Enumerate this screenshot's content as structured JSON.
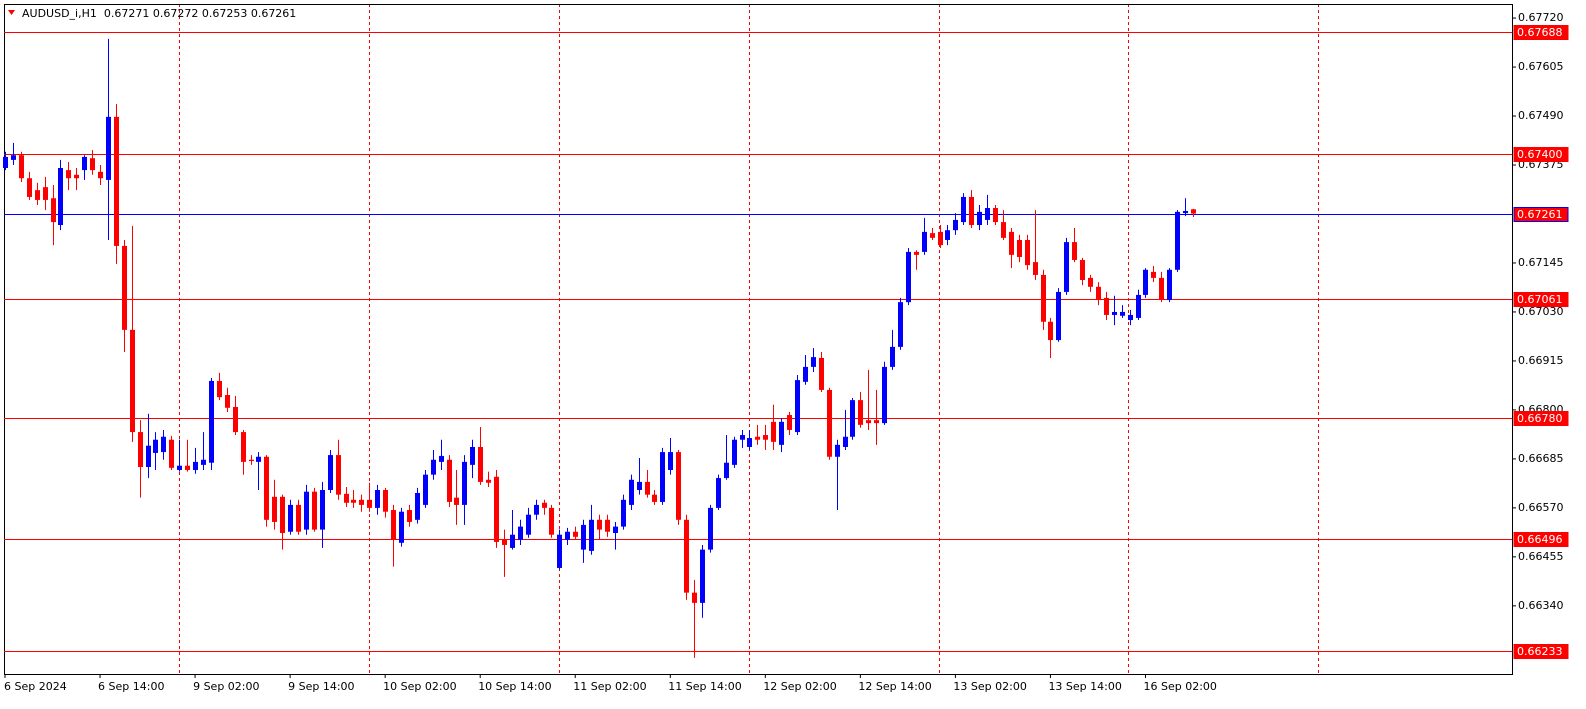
{
  "chart_data": {
    "type": "candlestick",
    "title": "AUDUSD_i,H1  0.67271 0.67272 0.67253 0.67261",
    "up_color": "#0000ff",
    "down_color": "#ff0000",
    "categories": [
      "6 Sep 2024",
      null,
      null,
      null,
      null,
      null,
      null,
      null,
      null,
      null,
      null,
      null,
      "6 Sep 14:00",
      null,
      null,
      null,
      null,
      null,
      null,
      null,
      null,
      null,
      null,
      null,
      "9 Sep 02:00",
      null,
      null,
      null,
      null,
      null,
      null,
      null,
      null,
      null,
      null,
      null,
      "9 Sep 14:00",
      null,
      null,
      null,
      null,
      null,
      null,
      null,
      null,
      null,
      null,
      null,
      "10 Sep 02:00",
      null,
      null,
      null,
      null,
      null,
      null,
      null,
      null,
      null,
      null,
      null,
      "10 Sep 14:00",
      null,
      null,
      null,
      null,
      null,
      null,
      null,
      null,
      null,
      null,
      null,
      "11 Sep 02:00",
      null,
      null,
      null,
      null,
      null,
      null,
      null,
      null,
      null,
      null,
      null,
      "11 Sep 14:00",
      null,
      null,
      null,
      null,
      null,
      null,
      null,
      null,
      null,
      null,
      null,
      "12 Sep 02:00",
      null,
      null,
      null,
      null,
      null,
      null,
      null,
      null,
      null,
      null,
      null,
      "12 Sep 14:00",
      null,
      null,
      null,
      null,
      null,
      null,
      null,
      null,
      null,
      null,
      null,
      "13 Sep 02:00",
      null,
      null,
      null,
      null,
      null,
      null,
      null,
      null,
      null,
      null,
      null,
      "13 Sep 14:00",
      null,
      null,
      null,
      null,
      null,
      null,
      null,
      null,
      null,
      null,
      null,
      "16 Sep 02:00",
      null,
      null,
      null,
      null,
      null,
      null
    ],
    "open": [
      0.67368,
      0.67387,
      0.67398,
      0.67344,
      0.67316,
      0.67323,
      0.67297,
      0.67234,
      0.67363,
      0.67352,
      0.67363,
      0.67391,
      0.67359,
      0.6734,
      0.67488,
      0.67185,
      0.66988,
      0.66748,
      0.66666,
      0.66699,
      0.66701,
      0.6673,
      0.66659,
      0.66669,
      0.66659,
      0.66671,
      0.66676,
      0.66868,
      0.66835,
      0.66807,
      0.66748,
      0.66683,
      0.66678,
      0.6669,
      0.66596,
      0.66596,
      0.66514,
      0.66577,
      0.66519,
      0.66608,
      0.66519,
      0.66612,
      0.66694,
      0.66603,
      0.66589,
      0.66589,
      0.66589,
      0.6657,
      0.66612,
      0.66565,
      0.66488,
      0.66565,
      0.66542,
      0.66577,
      0.66648,
      0.66678,
      0.66683,
      0.66594,
      0.66577,
      0.66671,
      0.66713,
      0.66636,
      0.66643,
      0.66495,
      0.66476,
      0.66495,
      0.66507,
      0.66554,
      0.66582,
      0.6657,
      0.66429,
      0.66495,
      0.66514,
      0.66472,
      0.66469,
      0.66542,
      0.66542,
      0.66511,
      0.66526,
      0.66577,
      0.66612,
      0.66631,
      0.66601,
      0.66584,
      0.66659,
      0.66701,
      0.66542,
      0.66371,
      0.66347,
      0.66472,
      0.6657,
      0.6664,
      0.66671,
      0.6673,
      0.66713,
      0.66737,
      0.66741,
      0.66772,
      0.66718,
      0.66788,
      0.66748,
      0.66866,
      0.66901,
      0.66922,
      0.66847,
      0.6669,
      0.66713,
      0.66737,
      0.66823,
      0.66776,
      0.66776,
      0.66769,
      0.66901,
      0.66948,
      0.67053,
      0.67171,
      0.67171,
      0.67215,
      0.67218,
      0.67199,
      0.67222,
      0.67241,
      0.673,
      0.67234,
      0.67246,
      0.67274,
      0.67241,
      0.67218,
      0.67199,
      0.67199,
      0.67147,
      0.67117,
      0.67007,
      0.66964,
      0.67077,
      0.67194,
      0.67152,
      0.6711,
      0.67089,
      0.67063,
      0.67023,
      0.67021,
      0.67011,
      0.67016,
      0.6707,
      0.67124,
      0.6711,
      0.67058,
      0.67129,
      0.67262,
      0.67271
    ],
    "high": [
      0.67406,
      0.67427,
      0.67406,
      0.67359,
      0.67333,
      0.67347,
      0.67328,
      0.67387,
      0.67382,
      0.67368,
      0.67398,
      0.6741,
      0.67375,
      0.67671,
      0.67518,
      0.67199,
      0.67232,
      0.66776,
      0.66791,
      0.66748,
      0.66753,
      0.66739,
      0.6673,
      0.6673,
      0.66711,
      0.66748,
      0.66875,
      0.66887,
      0.66852,
      0.66833,
      0.66753,
      0.66694,
      0.66701,
      0.66694,
      0.66636,
      0.66601,
      0.66589,
      0.66589,
      0.66624,
      0.66617,
      0.66631,
      0.66706,
      0.6673,
      0.66619,
      0.66612,
      0.66601,
      0.66629,
      0.66624,
      0.66617,
      0.66577,
      0.6657,
      0.66577,
      0.66617,
      0.66659,
      0.66706,
      0.6673,
      0.66694,
      0.66659,
      0.66694,
      0.6673,
      0.6676,
      0.66655,
      0.66659,
      0.66519,
      0.66565,
      0.66542,
      0.6657,
      0.66589,
      0.66589,
      0.66577,
      0.66519,
      0.66523,
      0.66526,
      0.66542,
      0.66577,
      0.66554,
      0.66554,
      0.66537,
      0.66601,
      0.66648,
      0.66687,
      0.66659,
      0.66612,
      0.66711,
      0.66734,
      0.66706,
      0.66554,
      0.66401,
      0.66483,
      0.66577,
      0.66648,
      0.66741,
      0.66737,
      0.66753,
      0.66753,
      0.66765,
      0.66765,
      0.66812,
      0.66781,
      0.66795,
      0.66882,
      0.66929,
      0.66945,
      0.66936,
      0.66852,
      0.6673,
      0.668,
      0.66828,
      0.66842,
      0.66894,
      0.66847,
      0.66913,
      0.66988,
      0.67063,
      0.6718,
      0.67175,
      0.67251,
      0.67227,
      0.67234,
      0.67234,
      0.67262,
      0.67309,
      0.67316,
      0.67281,
      0.67305,
      0.67281,
      0.67269,
      0.67227,
      0.67211,
      0.67211,
      0.67269,
      0.67129,
      0.67016,
      0.67086,
      0.67204,
      0.67227,
      0.67157,
      0.67117,
      0.671,
      0.67077,
      0.67068,
      0.67046,
      0.67035,
      0.67082,
      0.67133,
      0.67138,
      0.67124,
      0.67133,
      0.67269,
      0.67297,
      0.67272
    ],
    "low": [
      0.67363,
      0.67375,
      0.67335,
      0.67293,
      0.67281,
      0.67269,
      0.67187,
      0.67222,
      0.67316,
      0.67316,
      0.6734,
      0.67352,
      0.67328,
      0.67199,
      0.67143,
      0.66936,
      0.66725,
      0.66594,
      0.6664,
      0.66659,
      0.66683,
      0.66659,
      0.66655,
      0.66655,
      0.6665,
      0.66659,
      0.66659,
      0.66823,
      0.66795,
      0.66741,
      0.66648,
      0.66671,
      0.66612,
      0.66526,
      0.66519,
      0.66472,
      0.66507,
      0.66507,
      0.66507,
      0.66514,
      0.66476,
      0.66605,
      0.66589,
      0.66572,
      0.6657,
      0.66561,
      0.66561,
      0.66554,
      0.66547,
      0.66432,
      0.66479,
      0.66526,
      0.66533,
      0.6657,
      0.66636,
      0.66659,
      0.66572,
      0.6653,
      0.6653,
      0.6664,
      0.66624,
      0.66619,
      0.66476,
      0.66408,
      0.66472,
      0.66483,
      0.665,
      0.66542,
      0.66554,
      0.665,
      0.66425,
      0.66483,
      0.66495,
      0.66441,
      0.6646,
      0.66495,
      0.66502,
      0.66472,
      0.66519,
      0.66565,
      0.66601,
      0.66594,
      0.66577,
      0.66577,
      0.66648,
      0.6653,
      0.66354,
      0.66218,
      0.66312,
      0.66465,
      0.66565,
      0.66636,
      0.66664,
      0.66711,
      0.66706,
      0.66718,
      0.66706,
      0.66706,
      0.66701,
      0.66741,
      0.66741,
      0.66859,
      0.66889,
      0.66842,
      0.66683,
      0.66565,
      0.66706,
      0.6673,
      0.66758,
      0.66753,
      0.66718,
      0.66765,
      0.66894,
      0.66941,
      0.67046,
      0.67129,
      0.67164,
      0.67199,
      0.6718,
      0.67187,
      0.67211,
      0.67234,
      0.67227,
      0.67222,
      0.67234,
      0.67234,
      0.67199,
      0.67133,
      0.67147,
      0.67129,
      0.67105,
      0.66988,
      0.66922,
      0.6696,
      0.6707,
      0.67147,
      0.67093,
      0.67077,
      0.67046,
      0.67011,
      0.66999,
      0.67016,
      0.66999,
      0.67011,
      0.67063,
      0.671,
      0.67053,
      0.67053,
      0.67124,
      0.67255,
      0.67253
    ],
    "close": [
      0.67394,
      0.67398,
      0.67344,
      0.673,
      0.67293,
      0.67293,
      0.67241,
      0.67368,
      0.67344,
      0.67344,
      0.67394,
      0.67363,
      0.67344,
      0.67488,
      0.67185,
      0.66988,
      0.66748,
      0.66666,
      0.66716,
      0.6673,
      0.66737,
      0.66664,
      0.66669,
      0.66659,
      0.66678,
      0.66683,
      0.66868,
      0.6683,
      0.66805,
      0.66748,
      0.66678,
      0.6668,
      0.6669,
      0.66542,
      0.66537,
      0.66511,
      0.66577,
      0.66514,
      0.66608,
      0.66519,
      0.66612,
      0.66694,
      0.66601,
      0.66582,
      0.66582,
      0.66577,
      0.6657,
      0.66612,
      0.66561,
      0.66495,
      0.66561,
      0.66537,
      0.66605,
      0.66648,
      0.66683,
      0.66692,
      0.66584,
      0.66577,
      0.66678,
      0.66713,
      0.66631,
      0.66629,
      0.6649,
      0.66483,
      0.66507,
      0.66526,
      0.66554,
      0.66577,
      0.6657,
      0.66507,
      0.66507,
      0.66514,
      0.66502,
      0.6653,
      0.66542,
      0.66519,
      0.66514,
      0.66526,
      0.66589,
      0.66636,
      0.66631,
      0.66601,
      0.66584,
      0.66701,
      0.66701,
      0.66542,
      0.66371,
      0.66347,
      0.66472,
      0.6657,
      0.6664,
      0.66676,
      0.6673,
      0.66741,
      0.66734,
      0.6673,
      0.6673,
      0.66725,
      0.66772,
      0.66753,
      0.6687,
      0.66901,
      0.66924,
      0.66847,
      0.6669,
      0.66718,
      0.66737,
      0.66823,
      0.66765,
      0.66769,
      0.66769,
      0.66901,
      0.66948,
      0.67053,
      0.67171,
      0.67164,
      0.67218,
      0.67204,
      0.67187,
      0.67222,
      0.67246,
      0.673,
      0.67234,
      0.67265,
      0.67274,
      0.67241,
      0.67204,
      0.67164,
      0.67159,
      0.6714,
      0.67117,
      0.67007,
      0.66964,
      0.67077,
      0.67194,
      0.67152,
      0.67105,
      0.67089,
      0.67058,
      0.67023,
      0.6703,
      0.6703,
      0.67023,
      0.6707,
      0.67129,
      0.6711,
      0.67058,
      0.67129,
      0.67265,
      0.67267,
      0.67261
    ],
    "ylim": [
      0.6618,
      0.67753
    ],
    "yticks": [
      {
        "value": 0.6772,
        "label": "0.67720"
      },
      0.67605,
      {
        "value": 0.6749,
        "label": "0.67490"
      },
      0.67375,
      0.67145,
      {
        "value": 0.6703,
        "label": "0.67030"
      },
      0.66915,
      {
        "value": 0.668,
        "label": "0.66800"
      },
      0.66685,
      {
        "value": 0.6657,
        "label": "0.66570"
      },
      0.66455,
      {
        "value": 0.6634,
        "label": "0.66340"
      }
    ],
    "levels": [
      {
        "value": 0.67688,
        "color": "#ff0000"
      },
      {
        "value": 0.674,
        "label": "0.67400",
        "color": "#ff0000"
      },
      {
        "value": 0.67261,
        "color": "#0000ff"
      },
      {
        "value": 0.67061,
        "color": "#ff0000"
      },
      {
        "value": 0.6678,
        "label": "0.66780",
        "color": "#ff0000"
      },
      {
        "value": 0.66496,
        "color": "#ff0000"
      },
      {
        "value": 0.66233,
        "color": "#ff0000"
      }
    ]
  }
}
